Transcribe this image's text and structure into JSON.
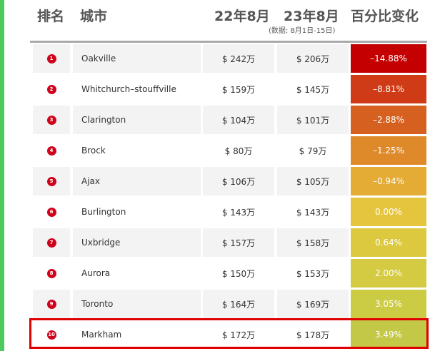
{
  "header": {
    "rank": "排名",
    "city": "城市",
    "aug22": "22年8月",
    "aug23": "23年8月",
    "aug23_note": "(数据: 8月1日-15日)",
    "pct_change": "百分比变化"
  },
  "colors": {
    "accent": "#4cc95f",
    "rank_badge": "#d0021b",
    "highlight_border": "#e00000"
  },
  "rows": [
    {
      "rank": "1",
      "city": "Oakville",
      "aug22": "$ 242万",
      "aug23": "$ 206万",
      "pct": "–14.88%",
      "pct_color": "#c40000"
    },
    {
      "rank": "2",
      "city": "Whitchurch–stouffville",
      "aug22": "$ 159万",
      "aug23": "$ 145万",
      "pct": "–8.81%",
      "pct_color": "#cf3b16"
    },
    {
      "rank": "3",
      "city": "Clarington",
      "aug22": "$ 104万",
      "aug23": "$ 101万",
      "pct": "–2.88%",
      "pct_color": "#d6601f"
    },
    {
      "rank": "4",
      "city": "Brock",
      "aug22": "$ 80万",
      "aug23": "$ 79万",
      "pct": "–1.25%",
      "pct_color": "#df8a2a"
    },
    {
      "rank": "5",
      "city": "Ajax",
      "aug22": "$ 106万",
      "aug23": "$ 105万",
      "pct": "–0.94%",
      "pct_color": "#e4ab35"
    },
    {
      "rank": "6",
      "city": "Burlington",
      "aug22": "$ 143万",
      "aug23": "$ 143万",
      "pct": "0.00%",
      "pct_color": "#e6c53e"
    },
    {
      "rank": "7",
      "city": "Uxbridge",
      "aug22": "$ 157万",
      "aug23": "$ 158万",
      "pct": "0.64%",
      "pct_color": "#dcc940"
    },
    {
      "rank": "8",
      "city": "Aurora",
      "aug22": "$ 150万",
      "aug23": "$ 153万",
      "pct": "2.00%",
      "pct_color": "#d4cb42"
    },
    {
      "rank": "9",
      "city": "Toronto",
      "aug22": "$ 164万",
      "aug23": "$ 169万",
      "pct": "3.05%",
      "pct_color": "#cccb44"
    },
    {
      "rank": "10",
      "city": "Markham",
      "aug22": "$ 172万",
      "aug23": "$ 178万",
      "pct": "3.49%",
      "pct_color": "#c3c846"
    }
  ],
  "highlighted_rank": "10"
}
